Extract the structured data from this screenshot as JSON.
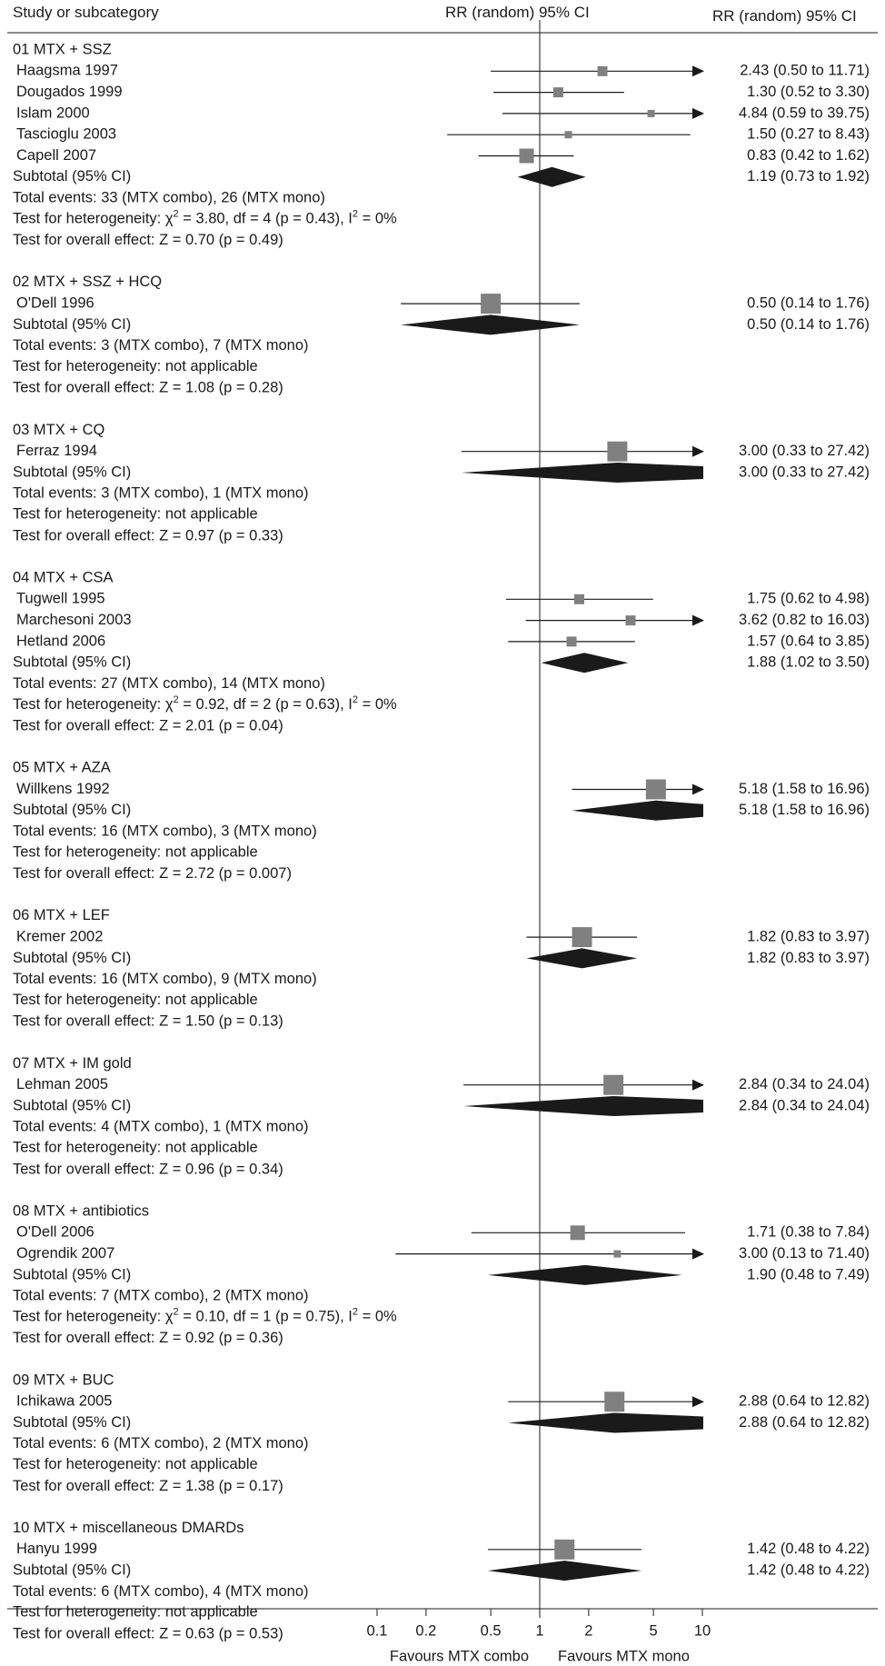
{
  "header": {
    "left": "Study or subcategory",
    "mid": "RR (random) 95% CI",
    "right": "RR (random) 95% CI"
  },
  "chart_data": {
    "type": "forest",
    "x_scale": "log",
    "xlim": [
      0.1,
      10
    ],
    "ticks": [
      "0.1",
      "0.2",
      "0.5",
      "1",
      "2",
      "5",
      "10"
    ],
    "favours_left": "Favours MTX combo",
    "favours_right": "Favours MTX mono",
    "groups": [
      {
        "title": "01 MTX + SSZ",
        "studies": [
          {
            "name": "Haagsma 1997",
            "rr": 2.43,
            "lo": 0.5,
            "hi": 11.71,
            "ci_text": "2.43 (0.50 to 11.71)",
            "weight": "small"
          },
          {
            "name": "Dougados 1999",
            "rr": 1.3,
            "lo": 0.52,
            "hi": 3.3,
            "ci_text": "1.30 (0.52 to 3.30)",
            "weight": "small"
          },
          {
            "name": "Islam 2000",
            "rr": 4.84,
            "lo": 0.59,
            "hi": 39.75,
            "ci_text": "4.84 (0.59 to 39.75)",
            "weight": "tiny"
          },
          {
            "name": "Tascioglu 2003",
            "rr": 1.5,
            "lo": 0.27,
            "hi": 8.43,
            "ci_text": "1.50 (0.27 to 8.43)",
            "weight": "tiny"
          },
          {
            "name": "Capell 2007",
            "rr": 0.83,
            "lo": 0.42,
            "hi": 1.62,
            "ci_text": "0.83 (0.42 to 1.62)",
            "weight": "medium"
          }
        ],
        "subtotal": {
          "label": "Subtotal (95% CI)",
          "rr": 1.19,
          "lo": 0.73,
          "hi": 1.92,
          "ci_text": "1.19 (0.73 to 1.92)"
        },
        "events": "Total events: 33 (MTX combo), 26 (MTX mono)",
        "heterogeneity": "Test for heterogeneity: χ² = 3.80, df = 4 (p = 0.43), I² = 0%",
        "overall": "Test for overall effect: Z = 0.70 (p = 0.49)"
      },
      {
        "title": "02 MTX + SSZ + HCQ",
        "studies": [
          {
            "name": "O'Dell 1996",
            "rr": 0.5,
            "lo": 0.14,
            "hi": 1.76,
            "ci_text": "0.50 (0.14 to 1.76)",
            "weight": "large"
          }
        ],
        "subtotal": {
          "label": "Subtotal (95% CI)",
          "rr": 0.5,
          "lo": 0.14,
          "hi": 1.76,
          "ci_text": "0.50 (0.14 to 1.76)"
        },
        "events": "Total events: 3 (MTX combo), 7 (MTX mono)",
        "heterogeneity": "Test for heterogeneity: not applicable",
        "overall": "Test for overall effect: Z = 1.08 (p = 0.28)"
      },
      {
        "title": "03 MTX + CQ",
        "studies": [
          {
            "name": "Ferraz 1994",
            "rr": 3.0,
            "lo": 0.33,
            "hi": 27.42,
            "ci_text": "3.00 (0.33 to 27.42)",
            "weight": "large"
          }
        ],
        "subtotal": {
          "label": "Subtotal (95% CI)",
          "rr": 3.0,
          "lo": 0.33,
          "hi": 27.42,
          "ci_text": "3.00 (0.33 to 27.42)"
        },
        "events": "Total events: 3 (MTX combo), 1 (MTX mono)",
        "heterogeneity": "Test for heterogeneity: not applicable",
        "overall": "Test for overall effect: Z = 0.97 (p = 0.33)"
      },
      {
        "title": "04 MTX + CSA",
        "studies": [
          {
            "name": "Tugwell 1995",
            "rr": 1.75,
            "lo": 0.62,
            "hi": 4.98,
            "ci_text": "1.75 (0.62 to 4.98)",
            "weight": "small"
          },
          {
            "name": "Marchesoni 2003",
            "rr": 3.62,
            "lo": 0.82,
            "hi": 16.03,
            "ci_text": "3.62 (0.82 to 16.03)",
            "weight": "small"
          },
          {
            "name": "Hetland 2006",
            "rr": 1.57,
            "lo": 0.64,
            "hi": 3.85,
            "ci_text": "1.57 (0.64 to 3.85)",
            "weight": "small"
          }
        ],
        "subtotal": {
          "label": "Subtotal (95% CI)",
          "rr": 1.88,
          "lo": 1.02,
          "hi": 3.5,
          "ci_text": "1.88 (1.02 to 3.50)"
        },
        "events": "Total events: 27 (MTX combo), 14 (MTX mono)",
        "heterogeneity": "Test for heterogeneity: χ² = 0.92, df = 2 (p = 0.63), I² = 0%",
        "overall": "Test for overall effect: Z = 2.01 (p = 0.04)"
      },
      {
        "title": "05 MTX + AZA",
        "studies": [
          {
            "name": "Willkens 1992",
            "rr": 5.18,
            "lo": 1.58,
            "hi": 16.96,
            "ci_text": "5.18 (1.58 to 16.96)",
            "weight": "large"
          }
        ],
        "subtotal": {
          "label": "Subtotal (95% CI)",
          "rr": 5.18,
          "lo": 1.58,
          "hi": 16.96,
          "ci_text": "5.18 (1.58 to 16.96)"
        },
        "events": "Total events: 16 (MTX combo), 3 (MTX mono)",
        "heterogeneity": "Test for heterogeneity: not applicable",
        "overall": "Test for overall effect: Z = 2.72 (p = 0.007)"
      },
      {
        "title": "06 MTX + LEF",
        "studies": [
          {
            "name": "Kremer 2002",
            "rr": 1.82,
            "lo": 0.83,
            "hi": 3.97,
            "ci_text": "1.82 (0.83 to 3.97)",
            "weight": "large"
          }
        ],
        "subtotal": {
          "label": "Subtotal (95% CI)",
          "rr": 1.82,
          "lo": 0.83,
          "hi": 3.97,
          "ci_text": "1.82 (0.83 to 3.97)"
        },
        "events": "Total events: 16 (MTX combo), 9 (MTX mono)",
        "heterogeneity": "Test for heterogeneity: not applicable",
        "overall": "Test for overall effect: Z = 1.50 (p = 0.13)"
      },
      {
        "title": "07 MTX + IM gold",
        "studies": [
          {
            "name": "Lehman 2005",
            "rr": 2.84,
            "lo": 0.34,
            "hi": 24.04,
            "ci_text": "2.84 (0.34 to 24.04)",
            "weight": "large"
          }
        ],
        "subtotal": {
          "label": "Subtotal (95% CI)",
          "rr": 2.84,
          "lo": 0.34,
          "hi": 24.04,
          "ci_text": "2.84 (0.34 to 24.04)"
        },
        "events": "Total events: 4 (MTX combo), 1 (MTX mono)",
        "heterogeneity": "Test for heterogeneity: not applicable",
        "overall": "Test for overall effect: Z = 0.96 (p = 0.34)"
      },
      {
        "title": "08 MTX + antibiotics",
        "studies": [
          {
            "name": "O'Dell 2006",
            "rr": 1.71,
            "lo": 0.38,
            "hi": 7.84,
            "ci_text": "1.71 (0.38 to 7.84)",
            "weight": "medium"
          },
          {
            "name": "Ogrendik 2007",
            "rr": 3.0,
            "lo": 0.13,
            "hi": 71.4,
            "ci_text": "3.00 (0.13 to 71.40)",
            "weight": "tiny"
          }
        ],
        "subtotal": {
          "label": "Subtotal (95% CI)",
          "rr": 1.9,
          "lo": 0.48,
          "hi": 7.49,
          "ci_text": "1.90 (0.48 to 7.49)"
        },
        "events": "Total events: 7 (MTX combo), 2 (MTX mono)",
        "heterogeneity": "Test for heterogeneity: χ² = 0.10, df = 1 (p = 0.75), I² = 0%",
        "overall": "Test for overall effect: Z = 0.92 (p = 0.36)"
      },
      {
        "title": "09 MTX + BUC",
        "studies": [
          {
            "name": "Ichikawa 2005",
            "rr": 2.88,
            "lo": 0.64,
            "hi": 12.82,
            "ci_text": "2.88 (0.64 to 12.82)",
            "weight": "large"
          }
        ],
        "subtotal": {
          "label": "Subtotal (95% CI)",
          "rr": 2.88,
          "lo": 0.64,
          "hi": 12.82,
          "ci_text": "2.88 (0.64 to 12.82)"
        },
        "events": "Total events: 6 (MTX combo), 2 (MTX mono)",
        "heterogeneity": "Test for heterogeneity: not applicable",
        "overall": "Test for overall effect: Z = 1.38 (p = 0.17)"
      },
      {
        "title": "10 MTX + miscellaneous DMARDs",
        "studies": [
          {
            "name": "Hanyu 1999",
            "rr": 1.42,
            "lo": 0.48,
            "hi": 4.22,
            "ci_text": "1.42 (0.48 to 4.22)",
            "weight": "large"
          }
        ],
        "subtotal": {
          "label": "Subtotal (95% CI)",
          "rr": 1.42,
          "lo": 0.48,
          "hi": 4.22,
          "ci_text": "1.42 (0.48 to 4.22)"
        },
        "events": "Total events: 6 (MTX combo), 4 (MTX mono)",
        "heterogeneity": "Test for heterogeneity: not applicable",
        "overall": "Test for overall effect: Z = 0.63 (p = 0.53)"
      }
    ],
    "colors": {
      "square": "#808080",
      "diamond": "#1a1a1a",
      "line": "#1a1a1a",
      "text": "#1a1a1a"
    }
  }
}
